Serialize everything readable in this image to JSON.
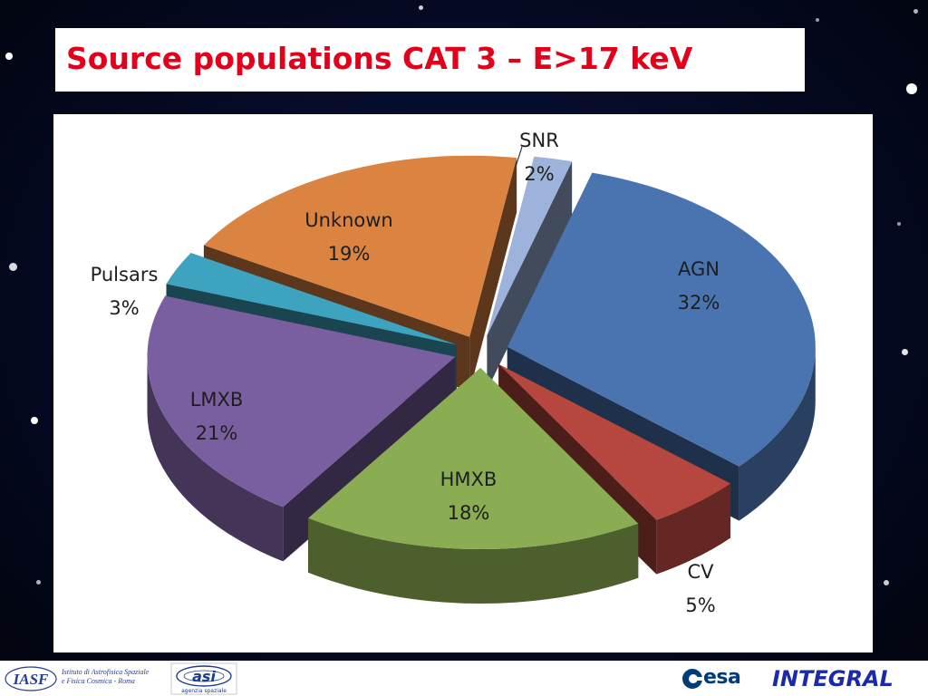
{
  "slide": {
    "title": "Source populations CAT 3 – E>17 keV"
  },
  "chart_data": {
    "type": "pie",
    "style": "3d-exploded",
    "title": "",
    "slices": [
      {
        "label": "AGN",
        "value": 32,
        "display": "32%",
        "color": "#4a74b0"
      },
      {
        "label": "CV",
        "value": 5,
        "display": "5%",
        "color": "#b5473f"
      },
      {
        "label": "HMXB",
        "value": 18,
        "display": "18%",
        "color": "#8aac52"
      },
      {
        "label": "LMXB",
        "value": 21,
        "display": "21%",
        "color": "#7a5fa0"
      },
      {
        "label": "Pulsars",
        "value": 3,
        "display": "3%",
        "color": "#3da3bf"
      },
      {
        "label": "Unknown",
        "value": 19,
        "display": "19%",
        "color": "#db8340"
      },
      {
        "label": "SNR",
        "value": 2,
        "display": "2%",
        "color": "#9db3dc"
      }
    ],
    "legend": "none",
    "data_labels": "outside-or-inside"
  },
  "footer": {
    "iasf_text": "Istituto di Astrofisica Spaziale\ne Fisica Cosmica - Roma",
    "iasf_logo_text": "IASF",
    "asi_logo_text": "asi",
    "asi_subtext": "agenzia spaziale",
    "esa_text": "esa",
    "integral_text": "INTEGRAL"
  }
}
